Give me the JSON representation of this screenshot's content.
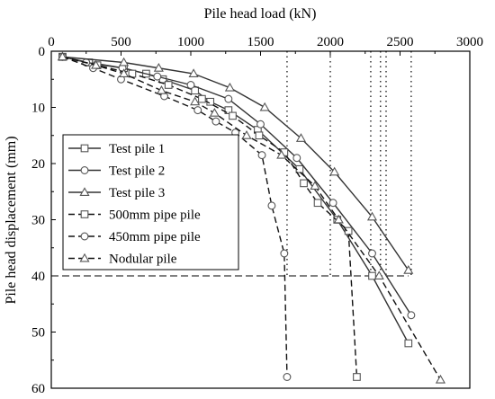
{
  "chart_data": {
    "type": "line",
    "xlabel": "Pile head load (kN)",
    "ylabel": "Pile head displacement (mm)",
    "xlim": [
      0,
      3000
    ],
    "ylim": [
      0,
      60
    ],
    "y_inverted": true,
    "x_axis_position": "top",
    "x_ticks": [
      0,
      500,
      1000,
      1500,
      2000,
      2500,
      3000
    ],
    "y_ticks": [
      0,
      10,
      20,
      30,
      40,
      50,
      60
    ],
    "legend_position": "center-left",
    "series": [
      {
        "name": "Test pile 1",
        "line": "solid",
        "marker": "square",
        "x": [
          80,
          270,
          520,
          680,
          800,
          1030,
          1140,
          1270,
          1480,
          1780,
          2050,
          2300,
          2560
        ],
        "y": [
          1,
          2,
          3,
          4,
          5,
          7,
          9,
          10.5,
          14,
          21,
          30,
          40,
          52
        ]
      },
      {
        "name": "Test pile 2",
        "line": "solid",
        "marker": "circle",
        "x": [
          80,
          250,
          510,
          760,
          1000,
          1270,
          1500,
          1760,
          2020,
          2300,
          2580
        ],
        "y": [
          1,
          2,
          3,
          4.5,
          6,
          8.5,
          13,
          19,
          27,
          36,
          47
        ]
      },
      {
        "name": "Test pile 3",
        "line": "solid",
        "marker": "triangle",
        "x": [
          80,
          520,
          770,
          1020,
          1280,
          1530,
          1790,
          2030,
          2300,
          2560
        ],
        "y": [
          1,
          2,
          3,
          4,
          6.5,
          10,
          15.5,
          21.5,
          29.5,
          39
        ]
      },
      {
        "name": "500mm pipe pile",
        "line": "dashed",
        "marker": "square",
        "x": [
          80,
          330,
          580,
          840,
          1080,
          1300,
          1490,
          1670,
          1810,
          1910,
          2130,
          2190
        ],
        "y": [
          1,
          2.5,
          4,
          6,
          8.5,
          11.5,
          15,
          18,
          23.5,
          27,
          32,
          58
        ]
      },
      {
        "name": "450mm pipe pile",
        "line": "dashed",
        "marker": "circle",
        "x": [
          80,
          300,
          500,
          810,
          1050,
          1180,
          1320,
          1510,
          1580,
          1670,
          1690
        ],
        "y": [
          1,
          3,
          5,
          8,
          10.5,
          12.5,
          14.5,
          18.5,
          27.5,
          36,
          58
        ]
      },
      {
        "name": "Nodular pile",
        "line": "dashed",
        "marker": "triangle",
        "x": [
          80,
          320,
          520,
          790,
          1030,
          1170,
          1400,
          1650,
          1890,
          2060,
          2350,
          2790
        ],
        "y": [
          1,
          2.5,
          4,
          7,
          9,
          11,
          15,
          18.5,
          24,
          30,
          40,
          58.5
        ]
      }
    ],
    "reference_lines": {
      "horizontal_dashed_y": 40,
      "horizontal_dashed_x_range": [
        0,
        2560
      ],
      "vertical_dotted_x": [
        1690,
        2000,
        2290,
        2360,
        2400,
        2580
      ],
      "vertical_dotted_from_y": 0
    }
  }
}
